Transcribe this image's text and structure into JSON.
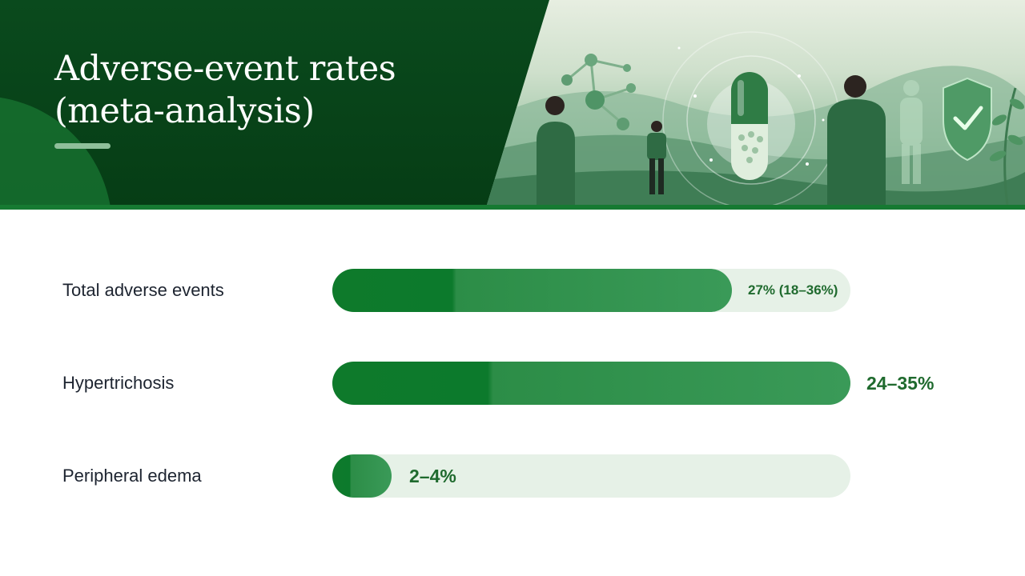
{
  "header": {
    "title": "Adverse-event rates\n(meta-analysis)"
  },
  "colors": {
    "header_bg": "#0b4a1f",
    "bar_fill": "#0e7a2b",
    "track": "#e6f1e7",
    "value_text": "#1f6a2e",
    "label_text": "#1d2430"
  },
  "illustration": {
    "icons": [
      "molecule-icon",
      "capsule-icon",
      "person-icon",
      "shield-check-icon",
      "leaf-icon",
      "body-silhouette-icon"
    ]
  },
  "chart_data": {
    "type": "bar",
    "orientation": "horizontal",
    "title": "Adverse-event rates\n(meta-analysis)",
    "categories": [
      "Total adverse events",
      "Hypertrichosis",
      "Peripheral edema"
    ],
    "series": [
      {
        "values": [
          27,
          35,
          4
        ],
        "labels": [
          "27% (18–36%)",
          "24–35%",
          "2–4%"
        ]
      }
    ],
    "ranges": [
      [
        18,
        36
      ],
      [
        24,
        35
      ],
      [
        2,
        4
      ]
    ],
    "xlim": [
      0,
      35
    ],
    "grid": false,
    "legend": "none"
  }
}
